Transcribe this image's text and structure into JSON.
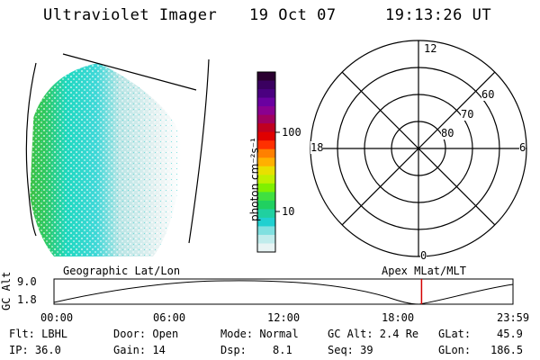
{
  "header": {
    "title": "Ultraviolet Imager",
    "date": "19 Oct 07",
    "time": "19:13:26 UT"
  },
  "colorbar": {
    "label": "photon cm⁻²s⁻¹",
    "ticks": [
      "100",
      "10"
    ],
    "colors": [
      "#2a0030",
      "#3a0060",
      "#4a0080",
      "#6a00a0",
      "#8a0090",
      "#a00060",
      "#c00020",
      "#e00000",
      "#ff3000",
      "#ff8000",
      "#ffb000",
      "#e8e000",
      "#c0f000",
      "#80f000",
      "#40e040",
      "#20d060",
      "#20d0a0",
      "#20d0d0",
      "#80e0e0",
      "#c0ecec",
      "#e8f4f4"
    ]
  },
  "polar": {
    "labels_hours": {
      "top": "12",
      "left": "18",
      "right": "6",
      "bottom": "0"
    },
    "labels_lat": [
      "60",
      "70",
      "80"
    ]
  },
  "timeline": {
    "ylabel": "GC Alt",
    "ymax": "9.0",
    "ymin": "1.8",
    "left_title": "Geographic Lat/Lon",
    "right_title": "Apex MLat/MLT",
    "xticks": [
      "00:00",
      "06:00",
      "12:00",
      "18:00",
      "23:59"
    ],
    "current_time_hours": 19.22,
    "marker_color": "#d40000"
  },
  "footer": {
    "flt": "Flt: LBHL",
    "ip": "IP: 36.0",
    "door": "Door: Open",
    "gain": "Gain: 14",
    "mode": "Mode: Normal",
    "dsp_label": "Dsp:",
    "dsp_value": "8.1",
    "gcalt": "GC Alt: 2.4 Re",
    "seq": "Seq: 39",
    "glat_label": "GLat:",
    "glat_value": "45.9",
    "glon_label": "GLon:",
    "glon_value": "186.5"
  }
}
